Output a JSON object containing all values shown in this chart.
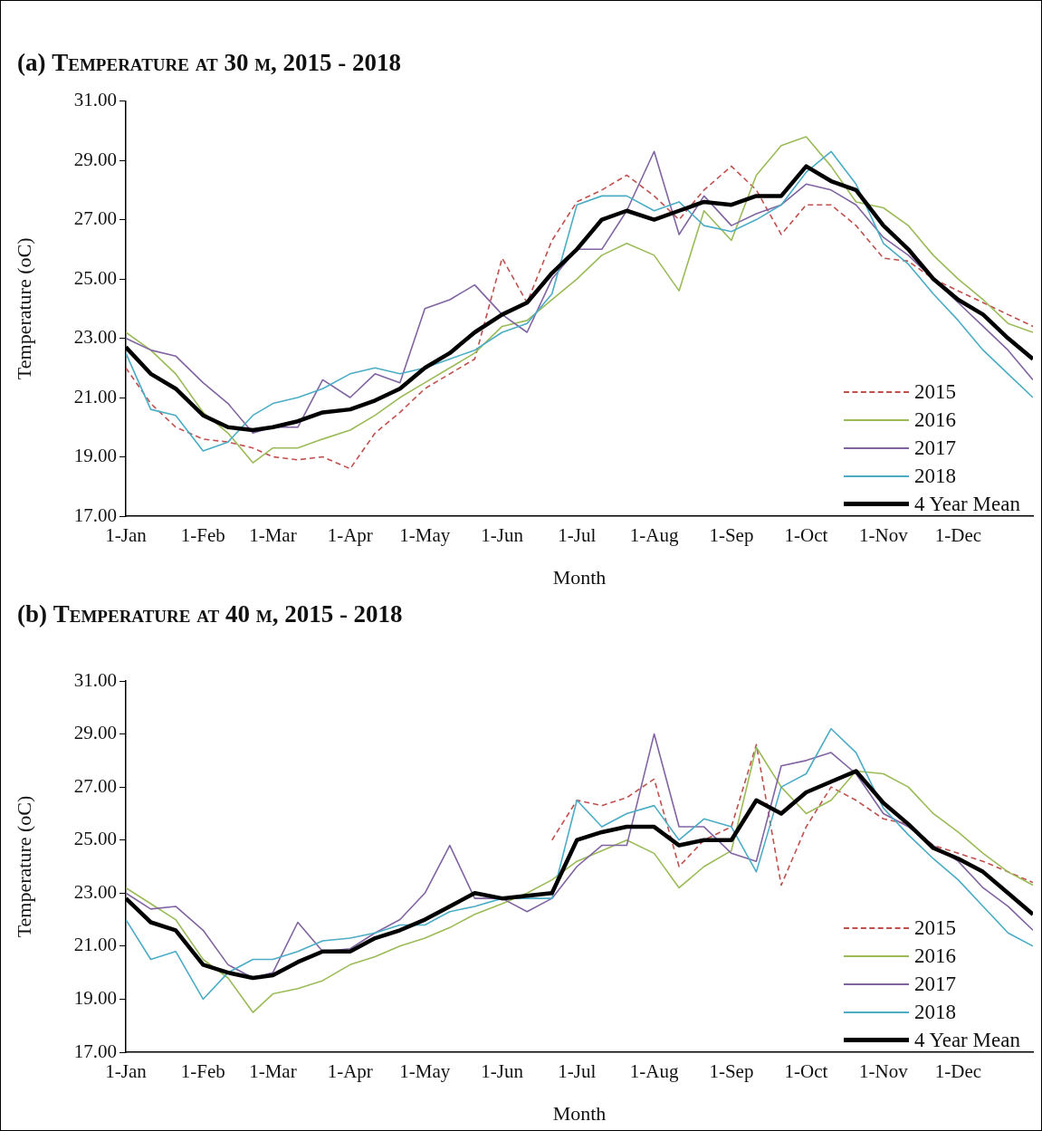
{
  "chart_data": [
    {
      "type": "line",
      "title": "(a) Temperature at 30 m, 2015 - 2018",
      "xlabel": "Month",
      "ylabel": "Temperature (oC)",
      "legend": "bottom right",
      "marker": "none",
      "line_style": "solid",
      "x": [
        "--01-01",
        "--01-11",
        "--01-21",
        "--02-01",
        "--02-11",
        "--02-21",
        "--03-01",
        "--03-11",
        "--03-21",
        "--04-01",
        "--04-11",
        "--04-21",
        "--05-01",
        "--05-11",
        "--05-21",
        "--06-01",
        "--06-11",
        "--06-21",
        "--07-01",
        "--07-11",
        "--07-21",
        "--08-01",
        "--08-11",
        "--08-21",
        "--09-01",
        "--09-11",
        "--09-21",
        "--10-01",
        "--10-11",
        "--10-21",
        "--11-01",
        "--11-11",
        "--11-21",
        "--12-01",
        "--12-11",
        "--12-21",
        "--12-31"
      ],
      "xlim": [
        "--01-01",
        "--12-31"
      ],
      "xticks": [
        {
          "value": "--01-01",
          "label": "1-Jan"
        },
        {
          "value": "--02-01",
          "label": "1-Feb"
        },
        {
          "value": "--03-01",
          "label": "1-Mar"
        },
        {
          "value": "--04-01",
          "label": "1-Apr"
        },
        {
          "value": "--05-01",
          "label": "1-May"
        },
        {
          "value": "--06-01",
          "label": "1-Jun"
        },
        {
          "value": "--07-01",
          "label": "1-Jul"
        },
        {
          "value": "--08-01",
          "label": "1-Aug"
        },
        {
          "value": "--09-01",
          "label": "1-Sep"
        },
        {
          "value": "--10-01",
          "label": "1-Oct"
        },
        {
          "value": "--11-01",
          "label": "1-Nov"
        },
        {
          "value": "--12-01",
          "label": "1-Dec"
        }
      ],
      "ylim": [
        17,
        31
      ],
      "yticks": [
        {
          "value": 17,
          "label": "17.00"
        },
        {
          "value": 19,
          "label": "19.00"
        },
        {
          "value": 21,
          "label": "21.00"
        },
        {
          "value": 23,
          "label": "23.00"
        },
        {
          "value": 25,
          "label": "25.00"
        },
        {
          "value": 27,
          "label": "27.00"
        },
        {
          "value": 29,
          "label": "29.00"
        },
        {
          "value": 31,
          "label": "31.00"
        }
      ],
      "series": [
        {
          "name": "2015",
          "color": "#c0504d",
          "line_style": "dashed",
          "values": [
            22.0,
            20.8,
            20.0,
            19.6,
            19.5,
            19.3,
            19.0,
            18.9,
            19.0,
            18.6,
            19.8,
            20.5,
            21.3,
            21.8,
            22.3,
            25.7,
            24.2,
            26.3,
            27.6,
            28.0,
            28.5,
            27.8,
            27.0,
            28.0,
            28.8,
            28.0,
            26.5,
            27.5,
            27.5,
            26.8,
            25.7,
            25.6,
            25.0,
            24.6,
            24.2,
            23.8,
            23.4
          ]
        },
        {
          "name": "2016",
          "color": "#9bbb59",
          "values": [
            23.2,
            22.6,
            21.8,
            20.5,
            19.8,
            18.8,
            19.3,
            19.3,
            19.6,
            19.9,
            20.4,
            21.0,
            21.5,
            22.0,
            22.5,
            23.4,
            23.6,
            24.3,
            25.0,
            25.8,
            26.2,
            25.8,
            24.6,
            27.3,
            26.3,
            28.5,
            29.5,
            29.8,
            28.8,
            27.6,
            27.4,
            26.8,
            25.8,
            25.0,
            24.3,
            23.5,
            23.2
          ]
        },
        {
          "name": "2017",
          "color": "#8064a2",
          "values": [
            23.0,
            22.6,
            22.4,
            21.5,
            20.8,
            19.8,
            20.0,
            20.0,
            21.6,
            21.0,
            21.8,
            21.5,
            24.0,
            24.3,
            24.8,
            23.8,
            23.2,
            25.0,
            26.0,
            26.0,
            27.3,
            29.3,
            26.5,
            27.8,
            26.8,
            27.2,
            27.5,
            28.2,
            28.0,
            27.5,
            26.4,
            25.8,
            25.0,
            24.2,
            23.4,
            22.6,
            21.6
          ]
        },
        {
          "name": "2018",
          "color": "#4bacc6",
          "values": [
            22.5,
            20.6,
            20.4,
            19.2,
            19.5,
            20.4,
            20.8,
            21.0,
            21.3,
            21.8,
            22.0,
            21.8,
            22.0,
            22.3,
            22.6,
            23.2,
            23.5,
            24.5,
            27.5,
            27.8,
            27.8,
            27.3,
            27.6,
            26.8,
            26.6,
            27.0,
            27.5,
            28.6,
            29.3,
            28.2,
            26.2,
            25.5,
            24.5,
            23.6,
            22.6,
            21.8,
            21.0
          ]
        },
        {
          "name": "4 Year Mean",
          "color": "#000000",
          "values": [
            22.7,
            21.8,
            21.3,
            20.4,
            20.0,
            19.9,
            20.0,
            20.2,
            20.5,
            20.6,
            20.9,
            21.3,
            22.0,
            22.5,
            23.2,
            23.8,
            24.2,
            25.2,
            26.0,
            27.0,
            27.3,
            27.0,
            27.3,
            27.6,
            27.5,
            27.8,
            27.8,
            28.8,
            28.3,
            28.0,
            26.8,
            26.0,
            25.0,
            24.3,
            23.8,
            23.0,
            22.3
          ]
        }
      ]
    },
    {
      "type": "line",
      "title": "(b) Temperature at 40 m, 2015 - 2018",
      "xlabel": "Month",
      "ylabel": "Temperature (oC)",
      "legend": "bottom right",
      "marker": "none",
      "line_style": "solid",
      "x": [
        "--01-01",
        "--01-11",
        "--01-21",
        "--02-01",
        "--02-11",
        "--02-21",
        "--03-01",
        "--03-11",
        "--03-21",
        "--04-01",
        "--04-11",
        "--04-21",
        "--05-01",
        "--05-11",
        "--05-21",
        "--06-01",
        "--06-11",
        "--06-21",
        "--07-01",
        "--07-11",
        "--07-21",
        "--08-01",
        "--08-11",
        "--08-21",
        "--09-01",
        "--09-11",
        "--09-21",
        "--10-01",
        "--10-11",
        "--10-21",
        "--11-01",
        "--11-11",
        "--11-21",
        "--12-01",
        "--12-11",
        "--12-21",
        "--12-31"
      ],
      "xlim": [
        "--01-01",
        "--12-31"
      ],
      "xticks": [
        {
          "value": "--01-01",
          "label": "1-Jan"
        },
        {
          "value": "--02-01",
          "label": "1-Feb"
        },
        {
          "value": "--03-01",
          "label": "1-Mar"
        },
        {
          "value": "--04-01",
          "label": "1-Apr"
        },
        {
          "value": "--05-01",
          "label": "1-May"
        },
        {
          "value": "--06-01",
          "label": "1-Jun"
        },
        {
          "value": "--07-01",
          "label": "1-Jul"
        },
        {
          "value": "--08-01",
          "label": "1-Aug"
        },
        {
          "value": "--09-01",
          "label": "1-Sep"
        },
        {
          "value": "--10-01",
          "label": "1-Oct"
        },
        {
          "value": "--11-01",
          "label": "1-Nov"
        },
        {
          "value": "--12-01",
          "label": "1-Dec"
        }
      ],
      "ylim": [
        17,
        31
      ],
      "yticks": [
        {
          "value": 17,
          "label": "17.00"
        },
        {
          "value": 19,
          "label": "19.00"
        },
        {
          "value": 21,
          "label": "21.00"
        },
        {
          "value": 23,
          "label": "23.00"
        },
        {
          "value": 25,
          "label": "25.00"
        },
        {
          "value": 27,
          "label": "27.00"
        },
        {
          "value": 29,
          "label": "29.00"
        },
        {
          "value": 31,
          "label": "31.00"
        }
      ],
      "series": [
        {
          "name": "2015",
          "color": "#c0504d",
          "line_style": "dashed",
          "values": [
            null,
            null,
            null,
            null,
            null,
            null,
            null,
            null,
            null,
            null,
            null,
            null,
            null,
            null,
            null,
            null,
            null,
            25.0,
            26.5,
            26.3,
            26.6,
            27.3,
            24.0,
            25.0,
            25.5,
            28.6,
            23.3,
            25.5,
            27.0,
            26.5,
            25.8,
            25.6,
            24.8,
            24.5,
            24.2,
            23.8,
            23.4
          ]
        },
        {
          "name": "2016",
          "color": "#9bbb59",
          "values": [
            23.2,
            22.6,
            22.0,
            20.5,
            19.8,
            18.5,
            19.2,
            19.4,
            19.7,
            20.3,
            20.6,
            21.0,
            21.3,
            21.7,
            22.2,
            22.6,
            23.0,
            23.5,
            24.2,
            24.6,
            25.0,
            24.5,
            23.2,
            24.0,
            24.6,
            28.5,
            27.0,
            26.0,
            26.5,
            27.6,
            27.5,
            27.0,
            26.0,
            25.3,
            24.5,
            23.8,
            23.3
          ]
        },
        {
          "name": "2017",
          "color": "#8064a2",
          "values": [
            23.0,
            22.4,
            22.5,
            21.6,
            20.3,
            19.8,
            20.0,
            21.9,
            20.8,
            20.9,
            21.5,
            22.0,
            23.0,
            24.8,
            22.8,
            22.8,
            22.3,
            22.8,
            24.0,
            24.8,
            24.8,
            29.0,
            25.5,
            25.5,
            24.5,
            24.2,
            27.8,
            28.0,
            28.3,
            27.5,
            26.0,
            25.5,
            24.8,
            24.2,
            23.2,
            22.5,
            21.6
          ]
        },
        {
          "name": "2018",
          "color": "#4bacc6",
          "values": [
            22.0,
            20.5,
            20.8,
            19.0,
            20.0,
            20.5,
            20.5,
            20.8,
            21.2,
            21.3,
            21.5,
            21.8,
            21.8,
            22.3,
            22.5,
            22.8,
            22.8,
            22.8,
            26.5,
            25.5,
            26.0,
            26.3,
            25.0,
            25.8,
            25.5,
            23.8,
            27.0,
            27.5,
            29.2,
            28.3,
            26.2,
            25.2,
            24.3,
            23.5,
            22.5,
            21.5,
            21.0
          ]
        },
        {
          "name": "4 Year Mean",
          "color": "#000000",
          "values": [
            22.8,
            21.9,
            21.6,
            20.3,
            20.0,
            19.8,
            19.9,
            20.4,
            20.8,
            20.8,
            21.3,
            21.6,
            22.0,
            22.5,
            23.0,
            22.8,
            22.9,
            23.0,
            25.0,
            25.3,
            25.5,
            25.5,
            24.8,
            25.0,
            25.0,
            26.5,
            26.0,
            26.8,
            27.2,
            27.6,
            26.4,
            25.6,
            24.7,
            24.3,
            23.8,
            23.0,
            22.2
          ]
        }
      ]
    }
  ]
}
